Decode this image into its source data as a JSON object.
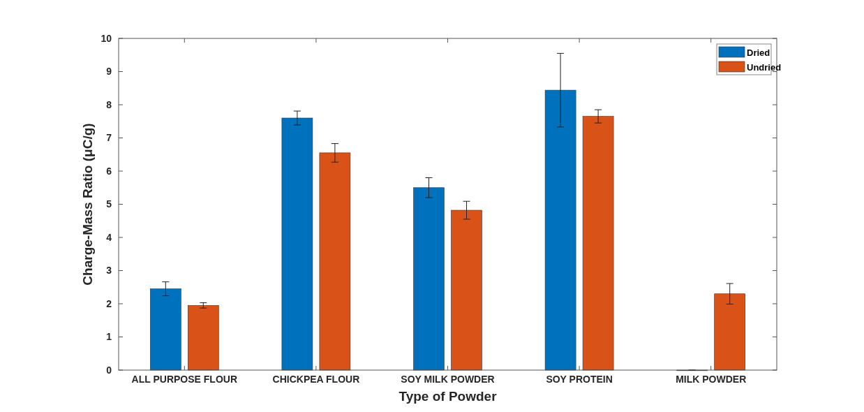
{
  "chart_data": {
    "type": "bar",
    "xlabel": "Type of Powder",
    "ylabel": "Charge-Mass Ratio (μC/g)",
    "categories": [
      "ALL PURPOSE FLOUR",
      "CHICKPEA FLOUR",
      "SOY MILK POWDER",
      "SOY PROTEIN",
      "MILK POWDER"
    ],
    "series": [
      {
        "name": "Dried",
        "color": "#0072bd",
        "values": [
          2.45,
          7.6,
          5.5,
          8.44,
          0
        ],
        "errors": [
          0.21,
          0.21,
          0.3,
          1.11,
          0
        ]
      },
      {
        "name": "Undried",
        "color": "#d95319",
        "values": [
          1.95,
          6.55,
          4.82,
          7.65,
          2.3
        ],
        "errors": [
          0.08,
          0.28,
          0.27,
          0.2,
          0.31
        ]
      }
    ],
    "ylim": [
      0,
      10
    ],
    "yticks": [
      0,
      1,
      2,
      3,
      4,
      5,
      6,
      7,
      8,
      9,
      10
    ],
    "grid": false,
    "legend": "top right"
  }
}
